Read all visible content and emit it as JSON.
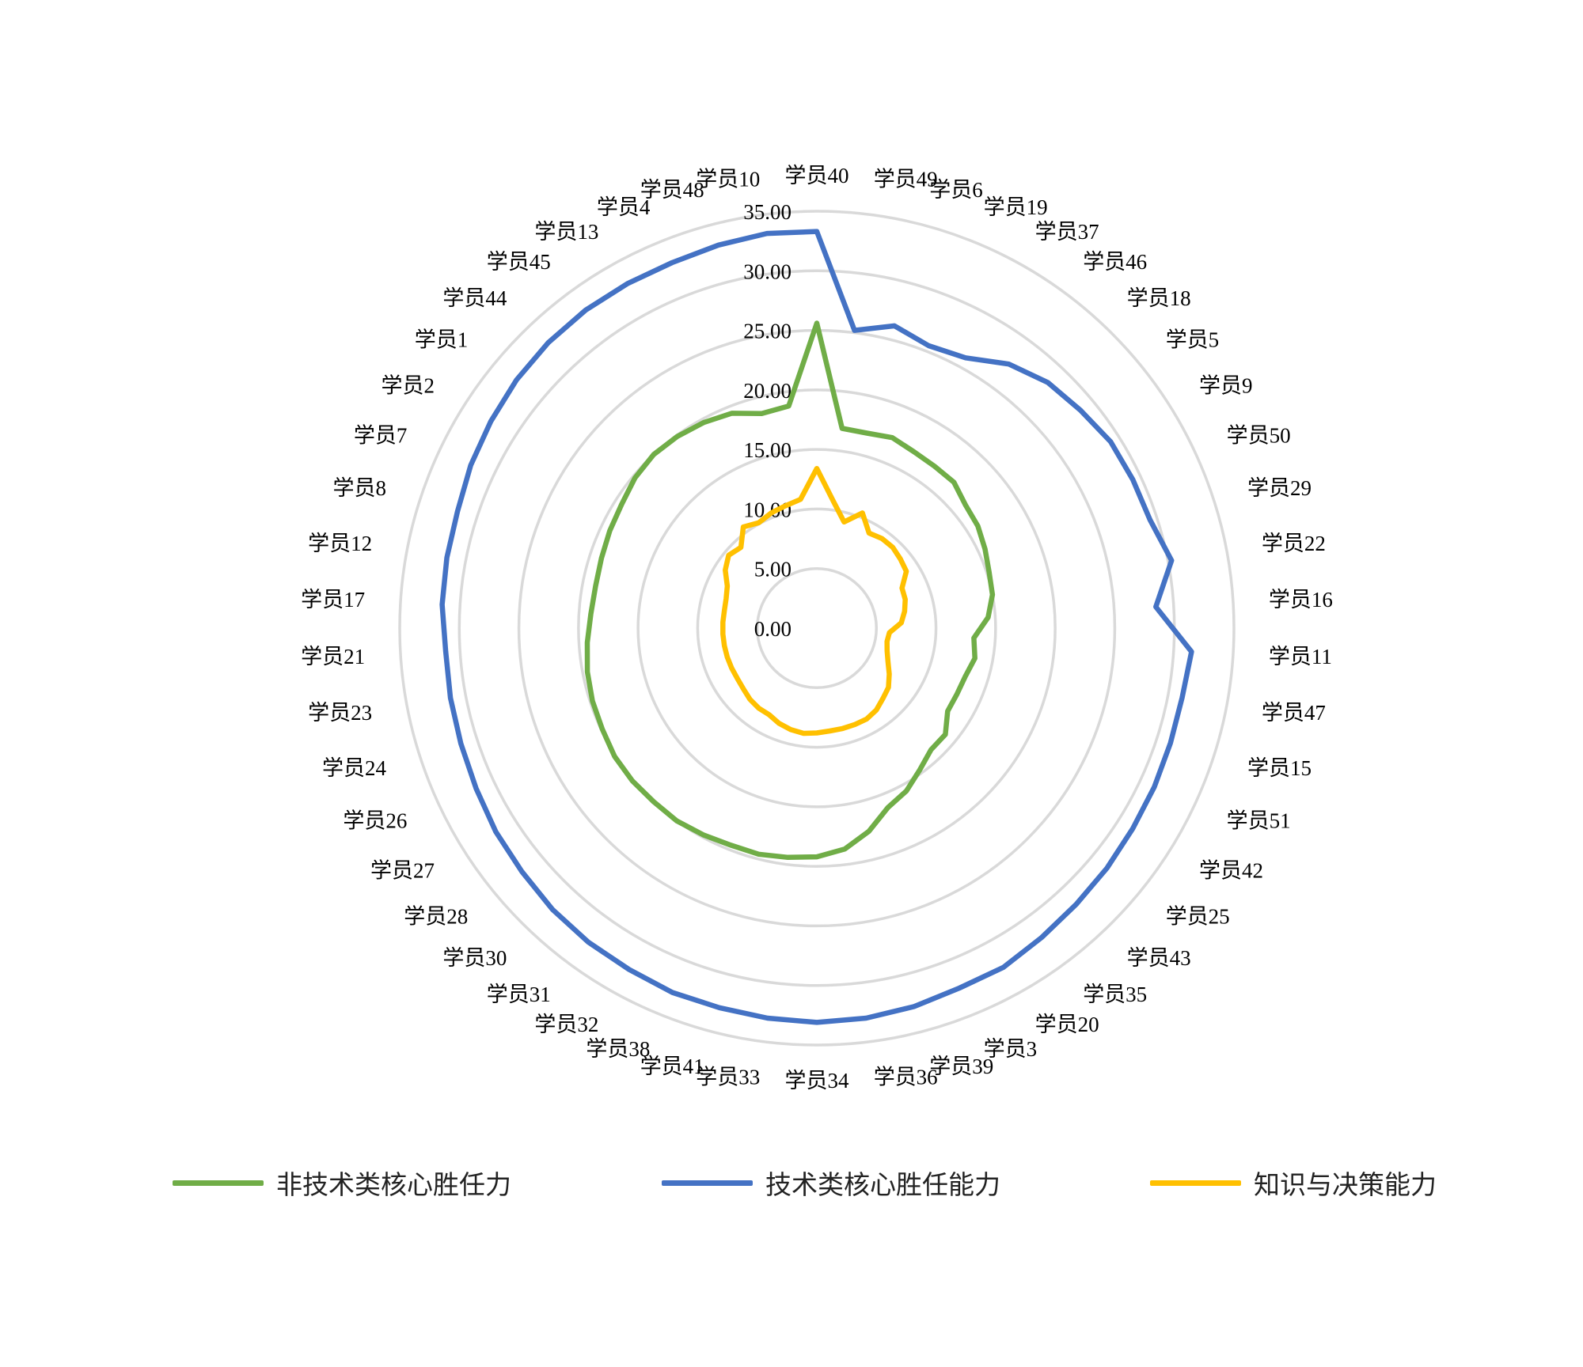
{
  "chart_data": {
    "type": "radar",
    "categories": [
      "学员40",
      "学员49",
      "学员6",
      "学员19",
      "学员37",
      "学员46",
      "学员18",
      "学员5",
      "学员9",
      "学员50",
      "学员29",
      "学员22",
      "学员16",
      "学员11",
      "学员47",
      "学员15",
      "学员51",
      "学员42",
      "学员25",
      "学员43",
      "学员35",
      "学员20",
      "学员3",
      "学员39",
      "学员36",
      "学员34",
      "学员33",
      "学员41",
      "学员38",
      "学员32",
      "学员31",
      "学员30",
      "学员28",
      "学员27",
      "学员26",
      "学员24",
      "学员23",
      "学员21",
      "学员17",
      "学员12",
      "学员8",
      "学员7",
      "学员2",
      "学员1",
      "学员44",
      "学员45",
      "学员13",
      "学员4",
      "学员48",
      "学员10"
    ],
    "rlim": [
      0,
      35
    ],
    "r_ticks": [
      "0.00",
      "5.00",
      "10.00",
      "15.00",
      "20.00",
      "25.00",
      "30.00",
      "35.00"
    ],
    "r_tick_values": [
      0,
      5,
      10,
      15,
      20,
      25,
      30,
      35
    ],
    "grid": true,
    "legend_position": "bottom",
    "series": [
      {
        "name": "非技术类核心胜任力",
        "color": "#70AD47",
        "values": [
          25.6,
          16.9,
          16.9,
          17.2,
          16.9,
          16.8,
          16.8,
          16.2,
          16.0,
          15.6,
          15.2,
          15.0,
          14.4,
          13.2,
          13.5,
          13.1,
          13.0,
          13.0,
          14.0,
          14.0,
          14.7,
          15.6,
          16.2,
          17.6,
          18.7,
          19.2,
          19.4,
          19.6,
          19.6,
          19.8,
          20.0,
          20.0,
          20.1,
          20.1,
          19.9,
          19.8,
          19.6,
          19.3,
          19.0,
          18.9,
          19.0,
          19.2,
          19.4,
          19.8,
          20.0,
          19.9,
          19.7,
          19.4,
          18.6,
          18.8
        ]
      },
      {
        "name": "技术类核心胜任能力",
        "color": "#4472C4",
        "values": [
          33.3,
          25.2,
          26.2,
          25.5,
          25.9,
          27.4,
          28.3,
          28.7,
          29.2,
          29.3,
          29.4,
          30.3,
          28.5,
          31.5,
          31.2,
          31.2,
          31.3,
          31.4,
          31.6,
          31.8,
          32.1,
          32.5,
          32.5,
          32.8,
          33.0,
          33.1,
          33.0,
          32.9,
          32.9,
          32.7,
          32.6,
          32.4,
          32.1,
          31.9,
          31.6,
          31.4,
          31.3,
          31.2,
          31.5,
          31.6,
          31.7,
          32.1,
          32.4,
          32.7,
          32.9,
          33.0,
          33.0,
          33.0,
          33.2,
          33.4
        ]
      },
      {
        "name": "知识与决策能力",
        "color": "#FFC000",
        "values": [
          13.4,
          10.8,
          9.2,
          10.4,
          9.1,
          9.3,
          9.3,
          9.1,
          8.9,
          7.9,
          7.8,
          7.5,
          7.1,
          6.1,
          6.0,
          6.2,
          6.6,
          7.2,
          7.8,
          8.1,
          8.5,
          8.7,
          8.7,
          8.7,
          8.7,
          8.8,
          8.9,
          8.8,
          8.6,
          8.3,
          8.3,
          8.2,
          8.0,
          7.9,
          7.9,
          7.9,
          7.9,
          7.9,
          7.9,
          7.9,
          8.0,
          8.3,
          9.1,
          9.6,
          9.3,
          10.5,
          10.1,
          10.4,
          10.6,
          10.9
        ]
      }
    ]
  }
}
